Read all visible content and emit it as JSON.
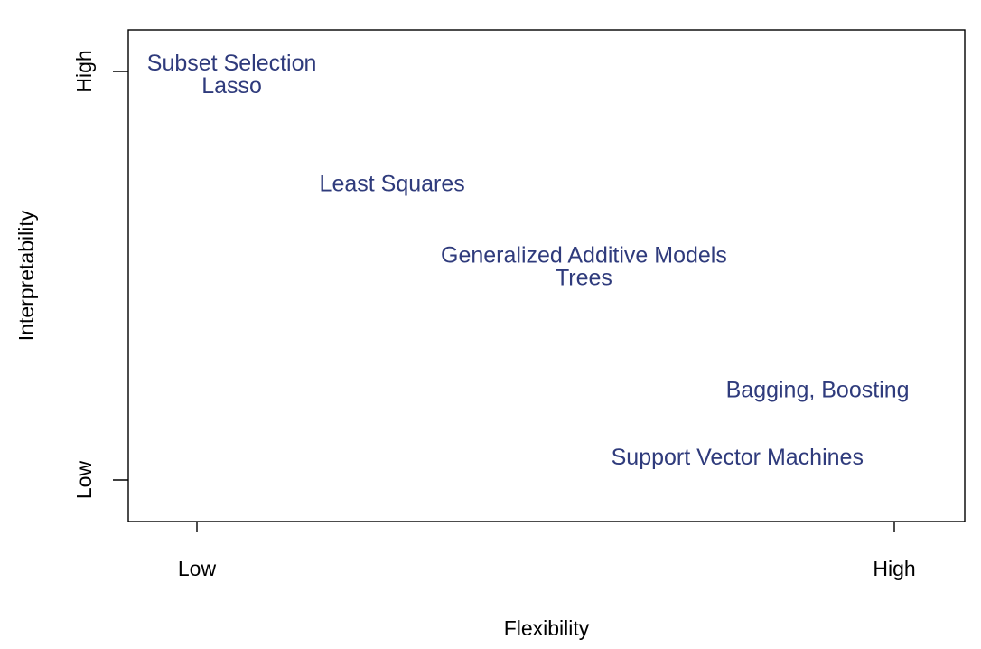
{
  "chart_data": {
    "type": "scatter",
    "xlabel": "Flexibility",
    "ylabel": "Interpretability",
    "xlim": [
      0,
      1
    ],
    "ylim": [
      0,
      1
    ],
    "x_ticks": [
      {
        "value": 0,
        "label": "Low"
      },
      {
        "value": 1,
        "label": "High"
      }
    ],
    "y_ticks": [
      {
        "value": 0,
        "label": "Low"
      },
      {
        "value": 1,
        "label": "High"
      }
    ],
    "text_color": "#2f3b7c",
    "points": [
      {
        "label": "Subset Selection",
        "x": 0.05,
        "y": 1.02
      },
      {
        "label": "Lasso",
        "x": 0.05,
        "y": 0.965
      },
      {
        "label": "Least Squares",
        "x": 0.28,
        "y": 0.725
      },
      {
        "label": "Generalized Additive Models",
        "x": 0.555,
        "y": 0.55
      },
      {
        "label": "Trees",
        "x": 0.555,
        "y": 0.495
      },
      {
        "label": "Bagging, Boosting",
        "x": 0.89,
        "y": 0.22
      },
      {
        "label": "Support Vector Machines",
        "x": 0.775,
        "y": 0.055
      }
    ]
  }
}
